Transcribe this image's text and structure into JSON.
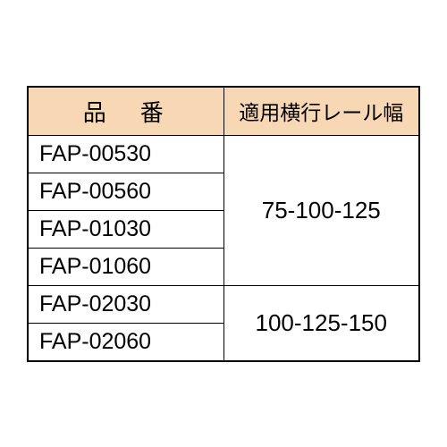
{
  "table": {
    "type": "table",
    "columns": [
      "品　番",
      "適用横行レール幅"
    ],
    "header_bg_color": "#f8d7b5",
    "border_color": "#000000",
    "background_color": "#ffffff",
    "text_color": "#000000",
    "header_fontsize": 26,
    "cell_fontsize": 25,
    "column_widths": [
      "50%",
      "50%"
    ],
    "rows": [
      {
        "part_no": "FAP-00530"
      },
      {
        "part_no": "FAP-00560"
      },
      {
        "part_no": "FAP-01030"
      },
      {
        "part_no": "FAP-01060"
      },
      {
        "part_no": "FAP-02030"
      },
      {
        "part_no": "FAP-02060"
      }
    ],
    "rail_widths": [
      {
        "value": "75-100-125",
        "rowspan": 4
      },
      {
        "value": "100-125-150",
        "rowspan": 2
      }
    ]
  }
}
